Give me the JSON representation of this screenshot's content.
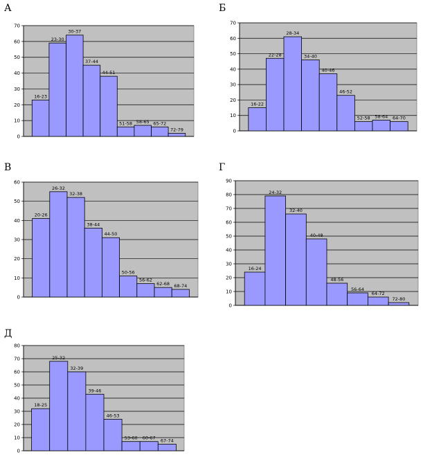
{
  "chart_data": [
    {
      "panel_label": "А",
      "type": "bar",
      "ylim": [
        0,
        70
      ],
      "yticks": [
        "0",
        "10",
        "20",
        "30",
        "40",
        "50",
        "60",
        "70"
      ],
      "grid": true,
      "categories": [
        "16-23",
        "23-30",
        "30-37",
        "37-44",
        "44-51",
        "51-58",
        "58-65",
        "65-72",
        "72-79"
      ],
      "values": [
        23,
        59,
        64,
        45,
        38,
        6,
        7,
        6,
        2
      ],
      "colors": {
        "bar": "#9999ff",
        "plot_bg": "#c0c0c0"
      }
    },
    {
      "panel_label": "Б",
      "type": "bar",
      "ylim": [
        0,
        70
      ],
      "yticks": [
        "0",
        "10",
        "20",
        "30",
        "40",
        "50",
        "60",
        "70"
      ],
      "grid": true,
      "categories": [
        "16-22",
        "22-28",
        "28-34",
        "34-40",
        "40-46",
        "46-52",
        "52-58",
        "58-64",
        "64-70"
      ],
      "values": [
        15,
        47,
        61,
        46,
        37,
        23,
        6,
        7,
        6
      ],
      "colors": {
        "bar": "#9999ff",
        "plot_bg": "#c0c0c0"
      }
    },
    {
      "panel_label": "В",
      "type": "bar",
      "ylim": [
        0,
        60
      ],
      "yticks": [
        "0",
        "10",
        "20",
        "30",
        "40",
        "50",
        "60"
      ],
      "grid": true,
      "categories": [
        "20-26",
        "26-32",
        "32-38",
        "38-44",
        "44-50",
        "50-56",
        "56-62",
        "62-68",
        "68-74"
      ],
      "values": [
        41,
        55,
        52,
        36,
        31,
        11,
        7,
        5,
        4
      ],
      "colors": {
        "bar": "#9999ff",
        "plot_bg": "#c0c0c0"
      }
    },
    {
      "panel_label": "Г",
      "type": "bar",
      "ylim": [
        0,
        90
      ],
      "yticks": [
        "0",
        "10",
        "20",
        "30",
        "40",
        "50",
        "60",
        "70",
        "80",
        "90"
      ],
      "grid": true,
      "categories": [
        "16-24",
        "24-32",
        "32-40",
        "40-48",
        "48-56",
        "56-64",
        "64-72",
        "72-80"
      ],
      "values": [
        24,
        79,
        66,
        48,
        16,
        9,
        6,
        2
      ],
      "colors": {
        "bar": "#9999ff",
        "plot_bg": "#c0c0c0"
      }
    },
    {
      "panel_label": "Д",
      "type": "bar",
      "ylim": [
        0,
        80
      ],
      "yticks": [
        "0",
        "10",
        "20",
        "30",
        "40",
        "50",
        "60",
        "70",
        "80"
      ],
      "grid": true,
      "categories": [
        "18-25",
        "25-32",
        "32-39",
        "39-46",
        "46-53",
        "53-60",
        "60-67",
        "67-74"
      ],
      "values": [
        32,
        68,
        60,
        43,
        24,
        7,
        7,
        5
      ],
      "colors": {
        "bar": "#9999ff",
        "plot_bg": "#c0c0c0"
      }
    }
  ]
}
